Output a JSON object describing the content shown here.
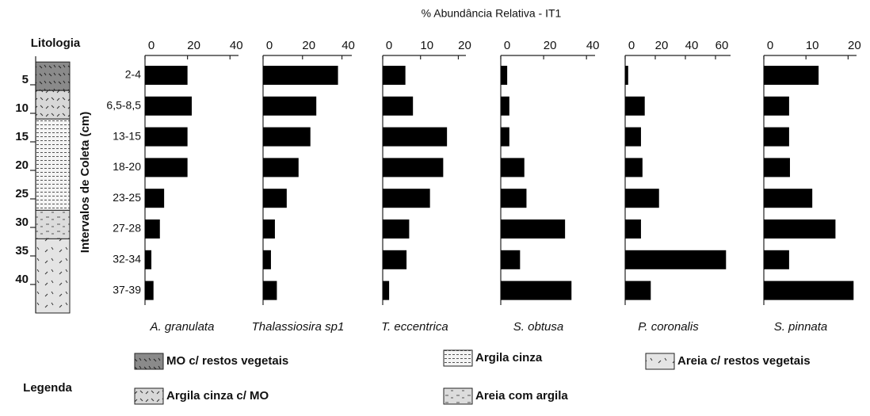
{
  "title": "% Abundância Relativa - IT1",
  "y_label": "Intervalos de Coleta (cm)",
  "categories": [
    "2-4",
    "6,5-8,5",
    "13-15",
    "18-20",
    "23-25",
    "27-28",
    "32-34",
    "37-39"
  ],
  "chart_data": [
    {
      "type": "bar",
      "title": "A. granulata",
      "values": [
        20,
        22,
        20,
        20,
        9,
        7,
        3,
        4
      ],
      "color": "#000000",
      "xlim": [
        0,
        44
      ],
      "xticks": [
        0,
        20,
        40
      ]
    },
    {
      "type": "bar",
      "title": "Thalassiosira sp1",
      "values": [
        38,
        27,
        24,
        18,
        12,
        6,
        4,
        7
      ],
      "color": "#000000",
      "xlim": [
        0,
        45
      ],
      "xticks": [
        0,
        20,
        40
      ]
    },
    {
      "type": "bar",
      "title": "T. eccentrica",
      "values": [
        6,
        8,
        17,
        16,
        12.5,
        7,
        6.3,
        1.7
      ],
      "color": "#000000",
      "xlim": [
        0,
        22
      ],
      "xticks": [
        0,
        10,
        20
      ]
    },
    {
      "type": "bar",
      "title": "S. obtusa",
      "values": [
        3,
        4,
        4,
        11,
        12,
        30,
        9,
        33
      ],
      "color": "#000000",
      "xlim": [
        0,
        44
      ],
      "xticks": [
        0,
        20,
        40
      ]
    },
    {
      "type": "bar",
      "title": "P. coronalis",
      "values": [
        2,
        13,
        10.5,
        11.5,
        22.5,
        10.5,
        67,
        17
      ],
      "color": "#000000",
      "xlim": [
        0,
        70
      ],
      "xticks": [
        0,
        20,
        40,
        60
      ]
    },
    {
      "type": "bar",
      "title": "S. pinnata",
      "values": [
        13,
        6,
        6,
        6.2,
        11.5,
        17,
        6,
        21.3
      ],
      "color": "#000000",
      "xlim": [
        0,
        22
      ],
      "xticks": [
        0,
        10,
        20
      ]
    }
  ],
  "lithology": {
    "title": "Litologia",
    "depth_lim": [
      0,
      45
    ],
    "depth_ticks": [
      5,
      10,
      15,
      20,
      25,
      30,
      35,
      40
    ],
    "layers": [
      {
        "top": 1,
        "bottom": 6,
        "legend_item": 0
      },
      {
        "top": 6,
        "bottom": 11,
        "legend_item": 1
      },
      {
        "top": 11,
        "bottom": 27,
        "legend_item": 2
      },
      {
        "top": 27,
        "bottom": 32,
        "legend_item": 3
      },
      {
        "top": 32,
        "bottom": 45,
        "legend_item": 4
      }
    ]
  },
  "legend": {
    "title": "Legenda",
    "items": [
      "MO c/ restos vegetais",
      "Argila cinza c/ MO",
      "Argila cinza",
      "Areia com argila",
      "Areia c/ restos vegetais"
    ]
  }
}
